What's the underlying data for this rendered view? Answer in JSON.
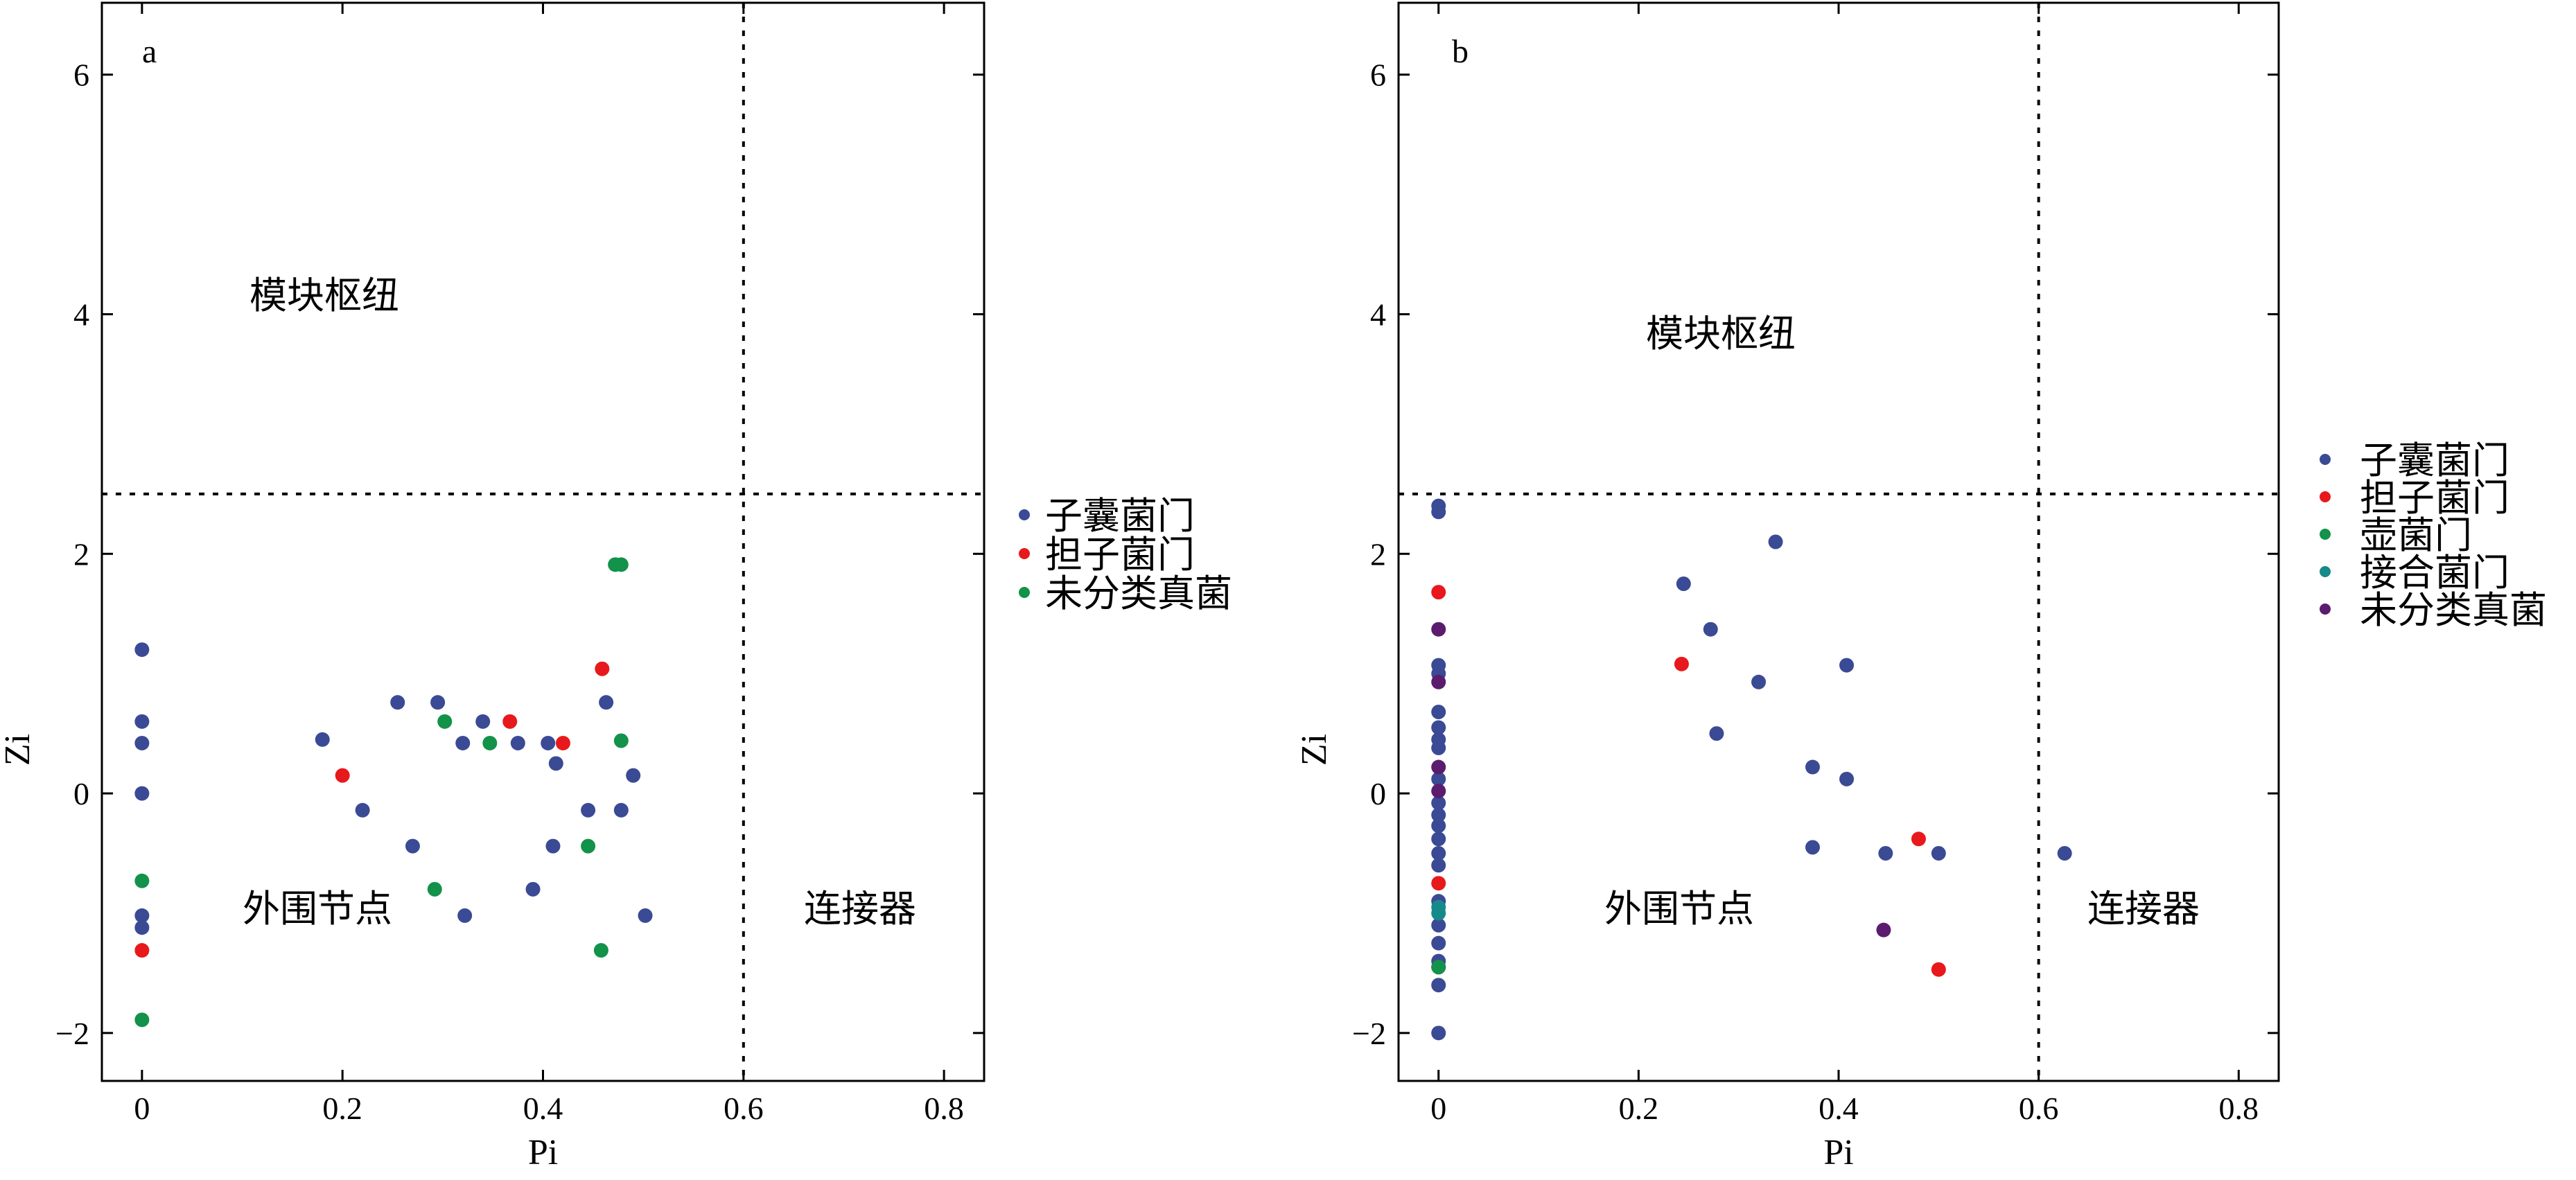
{
  "chart_data": [
    {
      "type": "scatter",
      "panel_label": "a",
      "xlabel": "Pi",
      "ylabel": "Zi",
      "xlim": [
        -0.04,
        0.84
      ],
      "ylim": [
        -2.4,
        6.6
      ],
      "xticks": [
        0,
        0.2,
        0.4,
        0.6,
        0.8
      ],
      "xtick_labels": [
        "0",
        "0.2",
        "0.4",
        "0.6",
        "0.8"
      ],
      "yticks": [
        -2,
        0,
        2,
        4,
        6
      ],
      "ytick_labels": [
        "−2",
        "0",
        "2",
        "4",
        "6"
      ],
      "thresholds": {
        "x": 0.6,
        "y": 2.5
      },
      "regions": {
        "module_hub": "模块枢纽",
        "peripheral": "外围节点",
        "connector": "连接器"
      },
      "legend_position": "right",
      "series": [
        {
          "name": "子囊菌门",
          "color": "#3b4a94",
          "points": [
            [
              0,
              1.2
            ],
            [
              0,
              0.6
            ],
            [
              0,
              0.42
            ],
            [
              0,
              0
            ],
            [
              0,
              -1.02
            ],
            [
              0,
              -1.12
            ],
            [
              0.18,
              0.45
            ],
            [
              0.22,
              -0.14
            ],
            [
              0.255,
              0.76
            ],
            [
              0.27,
              -0.44
            ],
            [
              0.295,
              0.76
            ],
            [
              0.32,
              0.42
            ],
            [
              0.322,
              -1.02
            ],
            [
              0.34,
              0.6
            ],
            [
              0.375,
              0.42
            ],
            [
              0.39,
              -0.8
            ],
            [
              0.405,
              0.42
            ],
            [
              0.41,
              -0.44
            ],
            [
              0.413,
              0.25
            ],
            [
              0.445,
              -0.14
            ],
            [
              0.463,
              0.76
            ],
            [
              0.478,
              -0.14
            ],
            [
              0.49,
              0.15
            ],
            [
              0.502,
              -1.02
            ]
          ]
        },
        {
          "name": "担子菌门",
          "color": "#e8191c",
          "points": [
            [
              0,
              -1.31
            ],
            [
              0.2,
              0.15
            ],
            [
              0.367,
              0.6
            ],
            [
              0.42,
              0.42
            ],
            [
              0.459,
              1.04
            ]
          ]
        },
        {
          "name": "未分类真菌",
          "color": "#12924a",
          "points": [
            [
              0,
              -0.73
            ],
            [
              0,
              -1.89
            ],
            [
              0.292,
              -0.8
            ],
            [
              0.302,
              0.6
            ],
            [
              0.347,
              0.42
            ],
            [
              0.445,
              -0.44
            ],
            [
              0.458,
              -1.31
            ],
            [
              0.472,
              1.91
            ],
            [
              0.478,
              1.91
            ],
            [
              0.478,
              0.44
            ]
          ]
        }
      ]
    },
    {
      "type": "scatter",
      "panel_label": "b",
      "xlabel": "Pi",
      "ylabel": "Zi",
      "xlim": [
        -0.04,
        0.84
      ],
      "ylim": [
        -2.4,
        6.6
      ],
      "xticks": [
        0,
        0.2,
        0.4,
        0.6,
        0.8
      ],
      "xtick_labels": [
        "0",
        "0.2",
        "0.4",
        "0.6",
        "0.8"
      ],
      "yticks": [
        -2,
        0,
        2,
        4,
        6
      ],
      "ytick_labels": [
        "−2",
        "0",
        "2",
        "4",
        "6"
      ],
      "thresholds": {
        "x": 0.6,
        "y": 2.5
      },
      "regions": {
        "module_hub": "模块枢纽",
        "peripheral": "外围节点",
        "connector": "连接器"
      },
      "legend_position": "right",
      "series": [
        {
          "name": "子囊菌门",
          "color": "#3b4a94",
          "points": [
            [
              0,
              2.4
            ],
            [
              0,
              2.35
            ],
            [
              0,
              1.07
            ],
            [
              0,
              1.0
            ],
            [
              0,
              0.68
            ],
            [
              0,
              0.55
            ],
            [
              0,
              0.45
            ],
            [
              0,
              0.38
            ],
            [
              0,
              0.12
            ],
            [
              0,
              -0.08
            ],
            [
              0,
              -0.18
            ],
            [
              0,
              -0.27
            ],
            [
              0,
              -0.38
            ],
            [
              0,
              -0.5
            ],
            [
              0,
              -0.6
            ],
            [
              0,
              -0.9
            ],
            [
              0,
              -1.1
            ],
            [
              0,
              -1.25
            ],
            [
              0,
              -1.4
            ],
            [
              0,
              -1.6
            ],
            [
              0,
              -2.0
            ],
            [
              0.245,
              1.75
            ],
            [
              0.272,
              1.37
            ],
            [
              0.278,
              0.5
            ],
            [
              0.32,
              0.93
            ],
            [
              0.337,
              2.1
            ],
            [
              0.374,
              -0.45
            ],
            [
              0.374,
              0.22
            ],
            [
              0.408,
              1.07
            ],
            [
              0.408,
              0.12
            ],
            [
              0.447,
              -0.5
            ],
            [
              0.5,
              -0.5
            ],
            [
              0.626,
              -0.5
            ]
          ]
        },
        {
          "name": "担子菌门",
          "color": "#e8191c",
          "points": [
            [
              0,
              1.68
            ],
            [
              0,
              -0.75
            ],
            [
              0,
              -1.45
            ],
            [
              0.243,
              1.08
            ],
            [
              0.48,
              -0.38
            ],
            [
              0.5,
              -1.47
            ]
          ]
        },
        {
          "name": "壶菌门",
          "color": "#12924a",
          "points": [
            [
              0,
              -1.45
            ]
          ]
        },
        {
          "name": "接合菌门",
          "color": "#168a8a",
          "points": [
            [
              0,
              -0.95
            ],
            [
              0,
              -1.0
            ]
          ]
        },
        {
          "name": "未分类真菌",
          "color": "#5b1c6e",
          "points": [
            [
              0,
              1.37
            ],
            [
              0,
              0.93
            ],
            [
              0,
              0.22
            ],
            [
              0,
              0.02
            ],
            [
              0.445,
              -1.14
            ]
          ]
        }
      ]
    }
  ]
}
